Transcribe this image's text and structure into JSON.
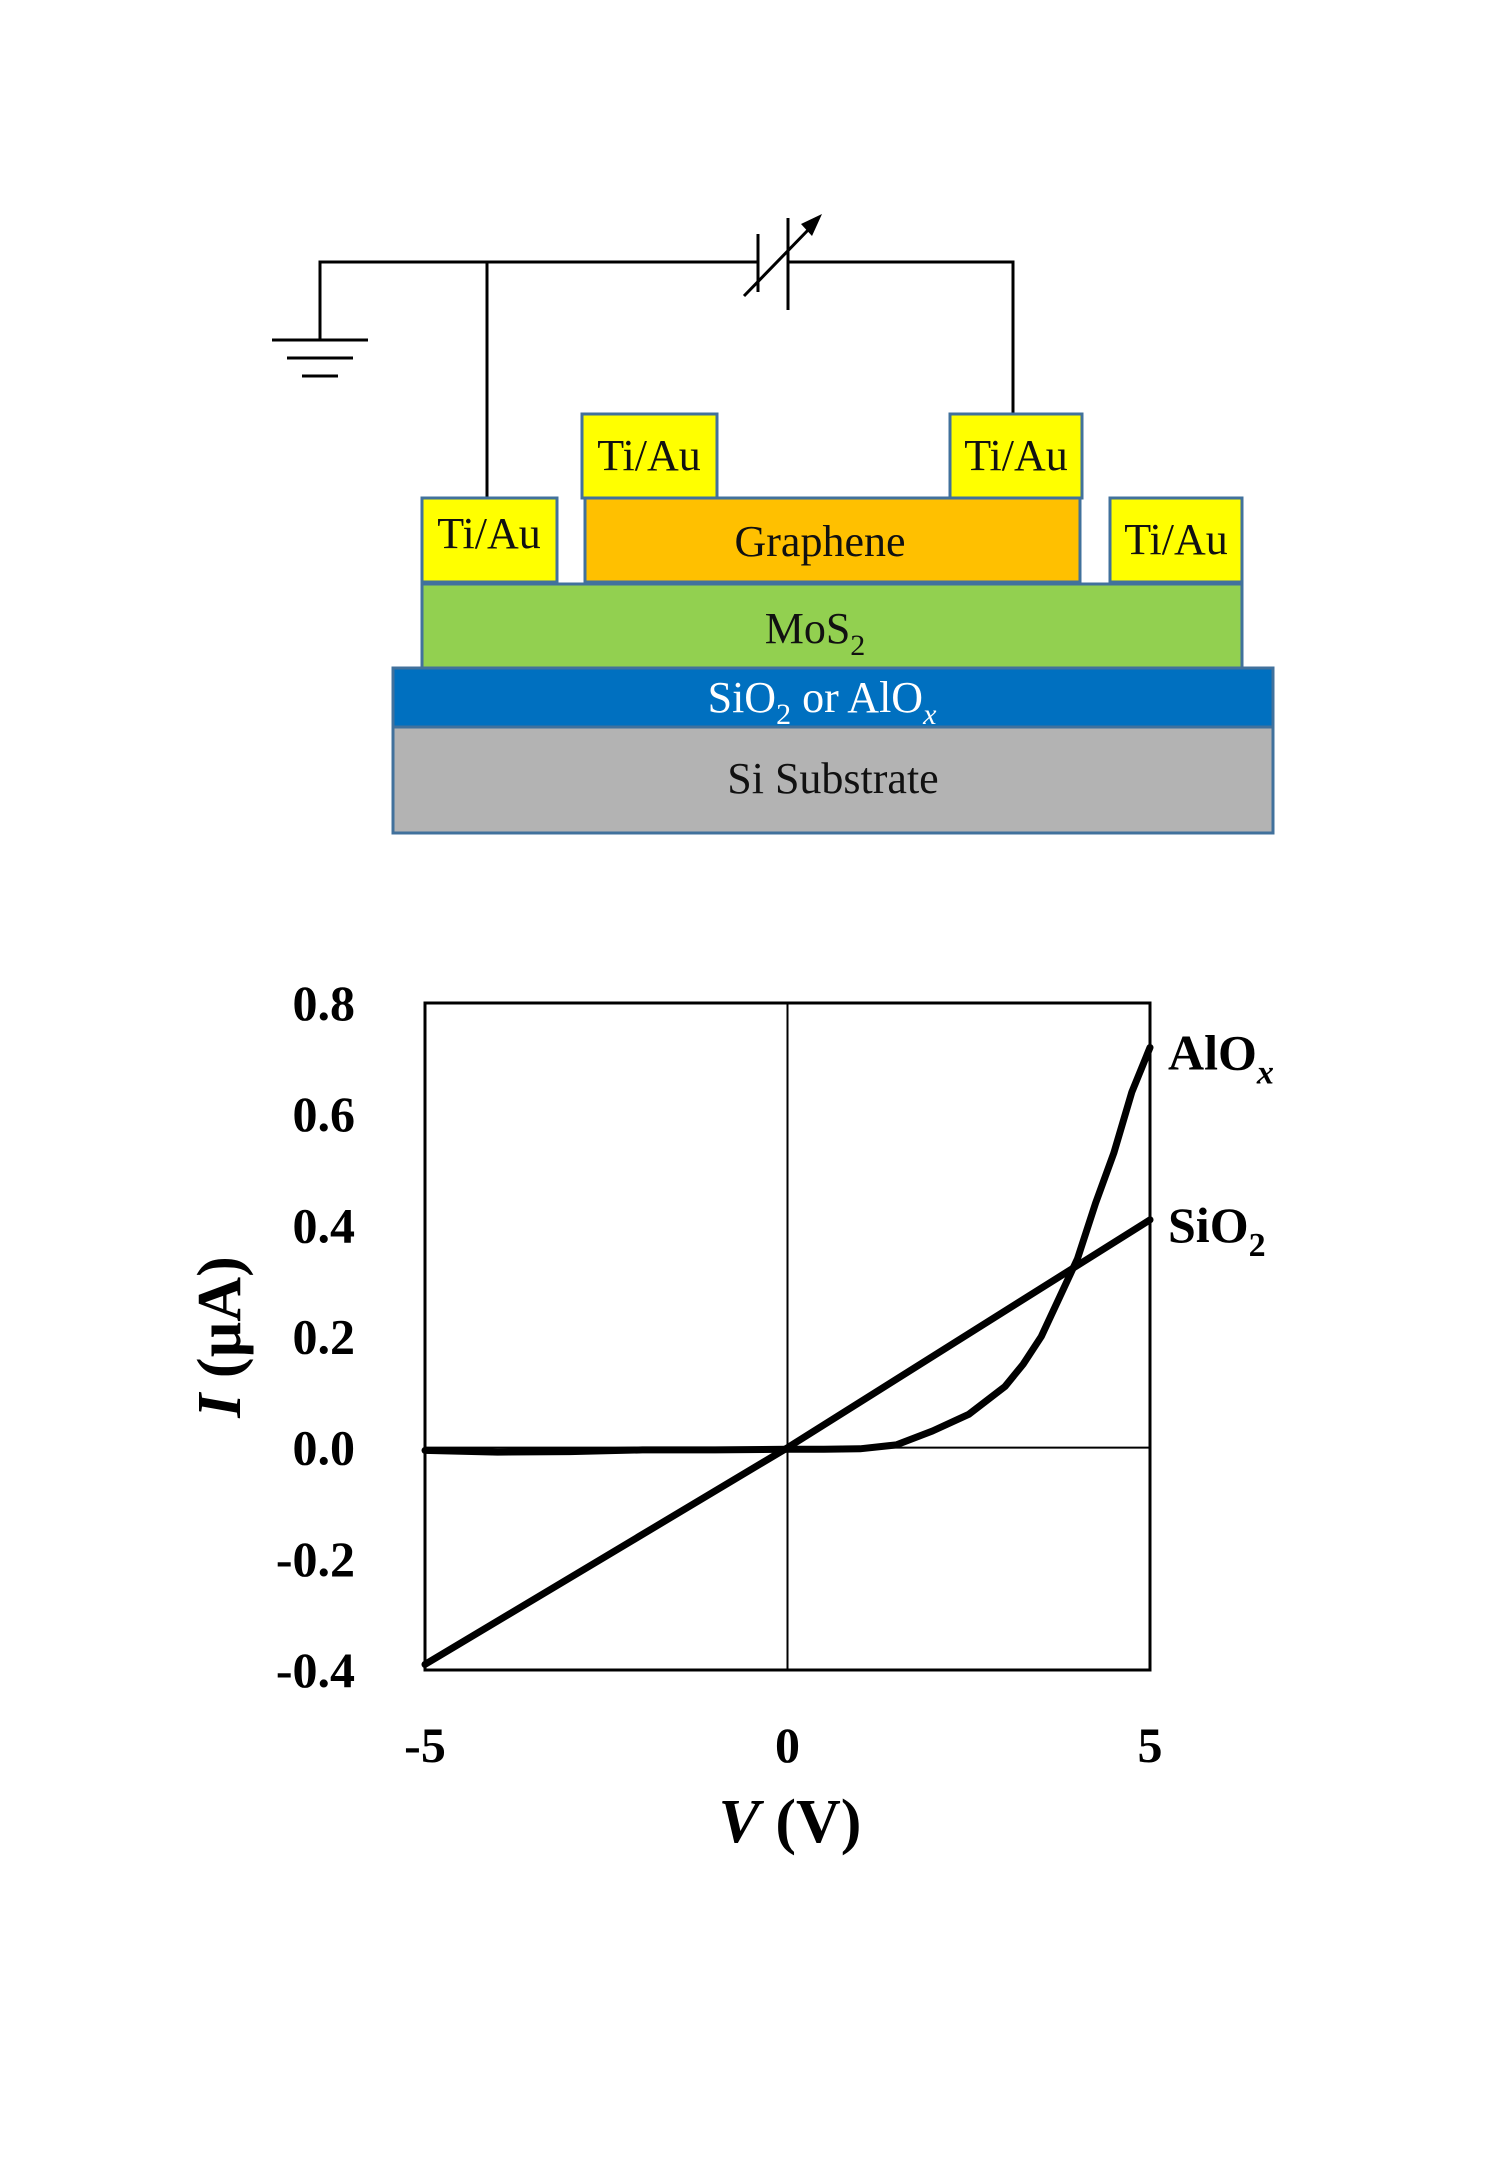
{
  "diagram": {
    "contacts": {
      "left_outer": "Ti/Au",
      "left_inner": "Ti/Au",
      "right_inner": "Ti/Au",
      "right_outer": "Ti/Au"
    },
    "layers": {
      "graphene": {
        "label": "Graphene",
        "color": "#ffc000"
      },
      "mos2": {
        "label": "MoS",
        "sub": "2",
        "color": "#92d050"
      },
      "dielectric": {
        "label_a": "SiO",
        "sub_a": "2",
        "label_mid": " or AlO",
        "sub_b": "x",
        "color": "#0070c0"
      },
      "substrate": {
        "label": "Si Substrate",
        "color": "#b3b3b3"
      }
    },
    "contact_color": "#ffff00",
    "border_color": "#41719c",
    "circuit": {
      "ground-icon": "ground-symbol",
      "source-icon": "variable-capacitor-symbol"
    }
  },
  "chart_data": {
    "type": "line",
    "xlabel": "V",
    "xlabel_unit": " (V)",
    "ylabel": "I",
    "ylabel_unit": " (µA)",
    "xlim": [
      -5,
      5
    ],
    "ylim": [
      -0.4,
      0.8
    ],
    "x_ticks": [
      "-5",
      "0",
      "5"
    ],
    "y_ticks": [
      "0.8",
      "0.6",
      "0.4",
      "0.2",
      "0.0",
      "-0.2",
      "-0.4"
    ],
    "grid": "zero-lines",
    "series": [
      {
        "name": "SiO",
        "name_sub": "2",
        "x": [
          -5,
          0,
          5
        ],
        "y": [
          -0.39,
          0.0,
          0.41
        ]
      },
      {
        "name": "AlO",
        "name_sub": "x",
        "x": [
          -5,
          -4,
          -3,
          -2,
          -1,
          0,
          0.5,
          1,
          1.5,
          2,
          2.5,
          3,
          3.25,
          3.5,
          3.75,
          4,
          4.25,
          4.5,
          4.75,
          5
        ],
        "y": [
          -0.005,
          -0.008,
          -0.007,
          -0.004,
          -0.004,
          -0.003,
          -0.003,
          -0.002,
          0.005,
          0.03,
          0.06,
          0.11,
          0.15,
          0.2,
          0.27,
          0.34,
          0.44,
          0.53,
          0.64,
          0.72
        ]
      }
    ]
  }
}
